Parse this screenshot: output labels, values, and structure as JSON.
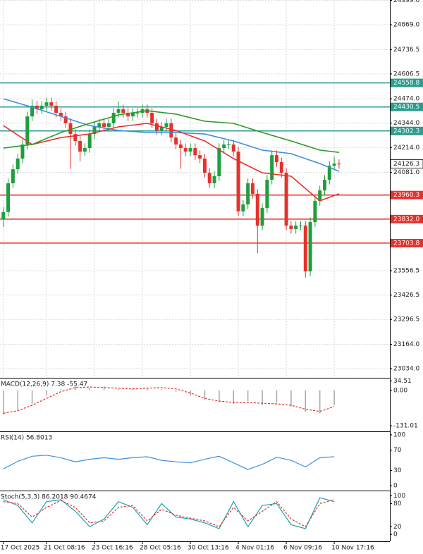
{
  "chart_data": [
    {
      "type": "candlestick",
      "grid": true,
      "xlim": [
        -0.7,
        80.6
      ],
      "ylim": [
        22989,
        25001
      ],
      "yticks": [
        {
          "value": 24999,
          "label": "24999.0"
        },
        {
          "value": 24869,
          "label": "24869.0"
        },
        24736.5,
        24606.5,
        {
          "value": 24474,
          "label": "24474.0"
        },
        {
          "value": 24344,
          "label": "24344.0"
        },
        {
          "value": 24214,
          "label": "24214.0"
        },
        {
          "value": 24081,
          "label": "24081.0"
        },
        23556.5,
        23426.5,
        23296.5,
        {
          "value": 23164,
          "label": "23164.0"
        },
        {
          "value": 23034,
          "label": "23034.0"
        }
      ],
      "xticks": [
        {
          "value": 0,
          "label": "17 Oct 2025"
        },
        {
          "value": 9,
          "label": "21 Oct 08:16"
        },
        {
          "value": 19,
          "label": "23 Oct 16:16"
        },
        {
          "value": 29,
          "label": "28 Oct 05:16"
        },
        {
          "value": 39,
          "label": "30 Oct 13:16"
        },
        {
          "value": 49,
          "label": "4 Nov 01:16"
        },
        {
          "value": 59,
          "label": "6 Nov 09:16"
        },
        {
          "value": 69,
          "label": "10 Nov 17:16"
        }
      ],
      "up_color": "#1e9e3e",
      "down_color": "#e5322b",
      "open": [
        23830,
        23870,
        24023,
        24098,
        24155,
        24230,
        24380,
        24437,
        24418,
        24437,
        24455,
        24437,
        24399,
        24380,
        24343,
        24286,
        24249,
        24192,
        24211,
        24286,
        24324,
        24343,
        24324,
        24343,
        24399,
        24418,
        24399,
        24380,
        24399,
        24399,
        24418,
        24399,
        24343,
        24305,
        24324,
        24343,
        24267,
        24230,
        24211,
        24192,
        24211,
        24173,
        24155,
        24079,
        24023,
        24061,
        24211,
        24230,
        24230,
        24192,
        23873,
        23910,
        24023,
        23967,
        23797,
        23891,
        24042,
        24173,
        24136,
        24079,
        23797,
        23779,
        23797,
        23797,
        23553,
        23816,
        23929,
        23985,
        24042,
        24117,
        24128
      ],
      "high": [
        23895,
        24048,
        24123,
        24180,
        24255,
        24405,
        24470,
        24462,
        24462,
        24480,
        24480,
        24462,
        24424,
        24405,
        24368,
        24311,
        24274,
        24236,
        24311,
        24349,
        24368,
        24368,
        24368,
        24424,
        24460,
        24443,
        24424,
        24424,
        24424,
        24443,
        24443,
        24424,
        24368,
        24349,
        24368,
        24368,
        24292,
        24255,
        24236,
        24236,
        24236,
        24198,
        24180,
        24104,
        24086,
        24236,
        24255,
        24255,
        24255,
        24217,
        23935,
        24048,
        24048,
        23992,
        23916,
        24067,
        24198,
        24198,
        24161,
        24104,
        23822,
        23822,
        23822,
        23822,
        23841,
        23954,
        24010,
        24067,
        24142,
        24165,
        24150
      ],
      "low": [
        23790,
        23845,
        23998,
        24073,
        24130,
        24205,
        24355,
        24393,
        24393,
        24412,
        24412,
        24374,
        24355,
        24318,
        24100,
        24224,
        24140,
        24167,
        24186,
        24261,
        24299,
        24299,
        24299,
        24318,
        24374,
        24374,
        24355,
        24355,
        24374,
        24374,
        24374,
        24318,
        24280,
        24280,
        24299,
        24242,
        24205,
        24100,
        24167,
        24167,
        24148,
        24130,
        24054,
        23998,
        23998,
        24036,
        24186,
        24205,
        24167,
        23848,
        23848,
        23885,
        23942,
        23650,
        23772,
        23866,
        24017,
        24111,
        24054,
        23772,
        23754,
        23754,
        23772,
        23520,
        23528,
        23791,
        23904,
        23960,
        24017,
        24092,
        24101
      ],
      "close": [
        23870,
        24023,
        24098,
        24155,
        24230,
        24380,
        24437,
        24418,
        24437,
        24455,
        24437,
        24399,
        24380,
        24343,
        24286,
        24249,
        24192,
        24211,
        24286,
        24324,
        24343,
        24324,
        24343,
        24399,
        24418,
        24399,
        24380,
        24399,
        24399,
        24418,
        24399,
        24343,
        24305,
        24324,
        24343,
        24267,
        24230,
        24211,
        24192,
        24211,
        24173,
        24155,
        24079,
        24023,
        24061,
        24211,
        24230,
        24230,
        24192,
        23873,
        23910,
        24023,
        23967,
        23797,
        23891,
        24042,
        24173,
        24136,
        24079,
        23797,
        23779,
        23797,
        23797,
        23553,
        23816,
        23929,
        23985,
        24042,
        24117,
        24128,
        24126
      ],
      "series": [
        {
          "color": "#3d8ee6",
          "x": [
            0,
            6,
            12,
            18,
            24,
            30,
            36,
            42,
            48,
            54,
            60,
            66,
            70
          ],
          "values": [
            24474,
            24429,
            24380,
            24331,
            24305,
            24294,
            24294,
            24286,
            24249,
            24200,
            24181,
            24128,
            24087
          ]
        },
        {
          "color": "#e8302a",
          "x": [
            0,
            6,
            12,
            18,
            24,
            30,
            36,
            42,
            48,
            54,
            60,
            66,
            70
          ],
          "values": [
            24331,
            24230,
            24267,
            24286,
            24324,
            24343,
            24305,
            24249,
            24155,
            24079,
            24061,
            23929,
            23967
          ]
        },
        {
          "color": "#2a9a2a",
          "x": [
            0,
            6,
            12,
            18,
            24,
            30,
            36,
            42,
            48,
            54,
            60,
            66,
            70
          ],
          "values": [
            24211,
            24230,
            24294,
            24343,
            24388,
            24410,
            24392,
            24354,
            24343,
            24294,
            24249,
            24200,
            24188
          ]
        }
      ],
      "levels": [
        {
          "value": 24558.8,
          "label": "24558.8",
          "color": "#2a9d8f"
        },
        {
          "value": 24430.5,
          "label": "24430.5",
          "color": "#2a9d8f"
        },
        {
          "value": 24302.3,
          "label": "24302.3",
          "color": "#2a9d8f"
        },
        {
          "value": 23960.3,
          "label": "23960.3",
          "color": "#e8302a"
        },
        {
          "value": 23832.0,
          "label": "23832.0",
          "color": "#e8302a"
        },
        {
          "value": 23703.8,
          "label": "23703.8",
          "color": "#e8302a"
        }
      ],
      "last_price": {
        "value": 24126.3,
        "label": "24126.3"
      }
    },
    {
      "type": "macd",
      "title": "MACD(12,26,9) 7.38 -55.47",
      "xlim": [
        -0.7,
        80.6
      ],
      "ylim": [
        -149,
        41
      ],
      "yticks": [
        34.51,
        {
          "value": 0,
          "label": "0.00"
        },
        -131.01
      ],
      "series": [
        {
          "style": "bar",
          "color": "#a8a8a8",
          "x": [
            0,
            3,
            6,
            9,
            12,
            15,
            18,
            21,
            24,
            27,
            30,
            33,
            36,
            39,
            42,
            45,
            48,
            51,
            54,
            57,
            60,
            63,
            66,
            69
          ],
          "values": [
            -90,
            -75,
            -50,
            -20,
            5,
            15,
            10,
            15,
            5,
            8,
            10,
            5,
            -5,
            -20,
            -35,
            -45,
            -50,
            -40,
            -55,
            -45,
            -60,
            -80,
            -85,
            -55
          ]
        },
        {
          "style": "dashed",
          "color": "#e8302a",
          "x": [
            0,
            3,
            6,
            9,
            12,
            15,
            18,
            21,
            24,
            27,
            30,
            33,
            36,
            39,
            42,
            45,
            48,
            51,
            54,
            57,
            60,
            63,
            66,
            69
          ],
          "values": [
            -85,
            -75,
            -55,
            -30,
            -5,
            10,
            12,
            10,
            8,
            5,
            8,
            10,
            5,
            -10,
            -30,
            -40,
            -45,
            -45,
            -48,
            -50,
            -55,
            -70,
            -78,
            -60
          ]
        }
      ]
    },
    {
      "type": "rsi",
      "title": "RSI(14) 56.8013",
      "xlim": [
        -0.7,
        80.6
      ],
      "ylim": [
        -8,
        104
      ],
      "yticks": [
        100,
        70,
        30,
        0
      ],
      "series": [
        {
          "style": "solid",
          "color": "#3d8ee6",
          "x": [
            0,
            3,
            6,
            9,
            12,
            15,
            18,
            21,
            24,
            27,
            30,
            33,
            36,
            39,
            42,
            45,
            48,
            51,
            54,
            57,
            60,
            63,
            66,
            69
          ],
          "values": [
            33,
            48,
            58,
            60,
            55,
            47,
            52,
            55,
            52,
            55,
            57,
            50,
            47,
            45,
            52,
            58,
            45,
            32,
            42,
            56,
            50,
            37,
            55,
            57
          ]
        }
      ]
    },
    {
      "type": "stoch",
      "title": "Stoch(5,3,3) 86.2018 90.4674",
      "xlim": [
        -0.7,
        80.6
      ],
      "ylim": [
        -16,
        110
      ],
      "yticks": [
        100,
        80,
        20,
        0
      ],
      "series": [
        {
          "style": "solid",
          "color": "#17a2b8",
          "x": [
            0,
            3,
            6,
            9,
            12,
            15,
            18,
            21,
            24,
            27,
            30,
            33,
            36,
            39,
            42,
            45,
            48,
            51,
            54,
            57,
            60,
            63,
            66,
            69
          ],
          "values": [
            90,
            75,
            30,
            85,
            90,
            60,
            20,
            40,
            85,
            70,
            25,
            80,
            45,
            40,
            30,
            15,
            85,
            20,
            75,
            80,
            25,
            15,
            95,
            85
          ]
        },
        {
          "style": "dashed",
          "color": "#e8302a",
          "x": [
            0,
            3,
            6,
            9,
            12,
            15,
            18,
            21,
            24,
            27,
            30,
            33,
            36,
            39,
            42,
            45,
            48,
            51,
            54,
            57,
            60,
            63,
            66,
            69
          ],
          "values": [
            85,
            80,
            45,
            70,
            88,
            70,
            30,
            35,
            70,
            75,
            35,
            65,
            50,
            42,
            35,
            20,
            70,
            35,
            60,
            85,
            40,
            20,
            80,
            90
          ]
        }
      ]
    }
  ]
}
